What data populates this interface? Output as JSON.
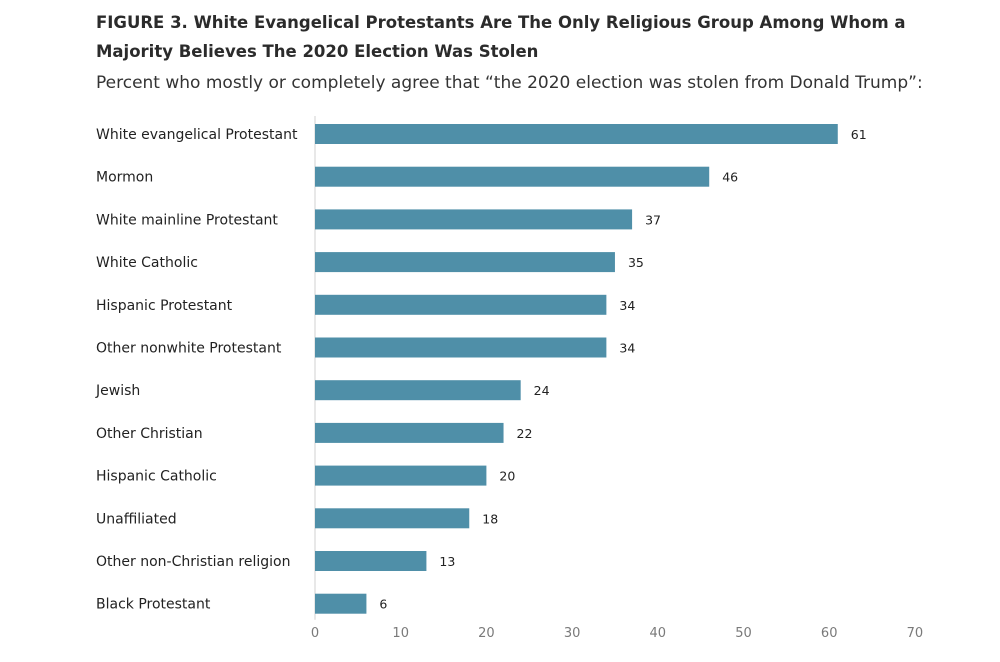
{
  "figure": {
    "title_line1": "FIGURE 3.  White Evangelical Protestants Are The Only Religious Group Among Whom a",
    "title_line2": "Majority Believes The 2020 Election Was Stolen",
    "subtitle": "Percent who mostly or completely agree that “the 2020 election was stolen from Donald Trump”:"
  },
  "chart_data": {
    "type": "bar",
    "orientation": "horizontal",
    "categories": [
      "White evangelical Protestant",
      "Mormon",
      "White mainline Protestant",
      "White Catholic",
      "Hispanic Protestant",
      "Other nonwhite Protestant",
      "Jewish",
      "Other Christian",
      "Hispanic Catholic",
      "Unaffiliated",
      "Other non-Christian religion",
      "Black Protestant"
    ],
    "values": [
      61,
      46,
      37,
      35,
      34,
      34,
      24,
      22,
      20,
      18,
      13,
      6
    ],
    "xlim": [
      0,
      70
    ],
    "xticks": [
      0,
      10,
      20,
      30,
      40,
      50,
      60,
      70
    ],
    "grid": false,
    "legend": "none",
    "bar_color": "#4f8fa8"
  }
}
